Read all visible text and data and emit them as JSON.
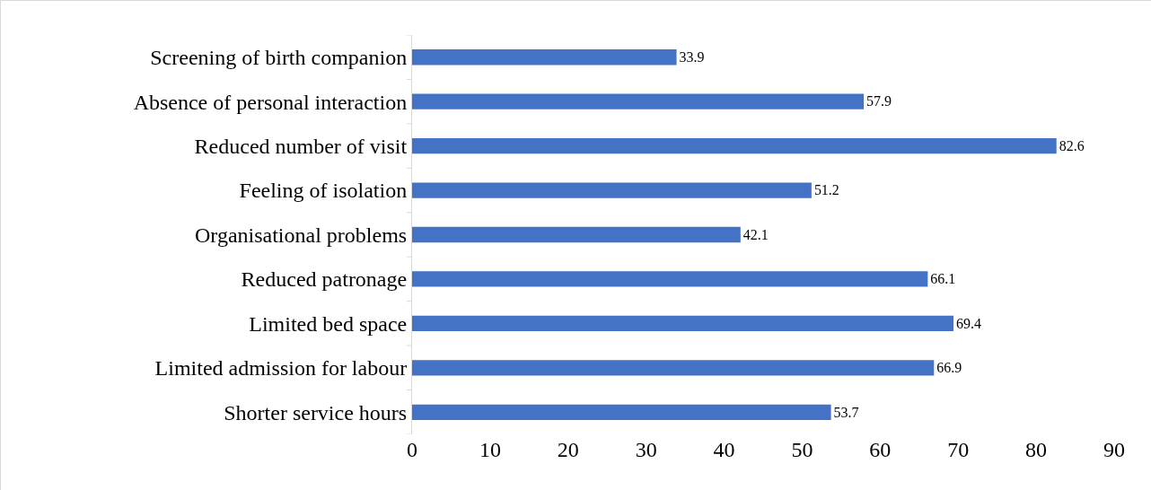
{
  "chart_data": {
    "type": "bar",
    "orientation": "horizontal",
    "categories": [
      "Screening of birth companion",
      "Absence of personal interaction",
      "Reduced number of visit",
      "Feeling of isolation",
      "Organisational problems",
      "Reduced patronage",
      "Limited bed space",
      "Limited admission for labour",
      "Shorter service hours"
    ],
    "values": [
      33.9,
      57.9,
      82.6,
      51.2,
      42.1,
      66.1,
      69.4,
      66.9,
      53.7
    ],
    "color": "#4472c4",
    "xlim": [
      0,
      90
    ],
    "xticks": [
      0,
      10,
      20,
      30,
      40,
      50,
      60,
      70,
      80,
      90
    ],
    "grid": false,
    "legend": false,
    "data_labels": true
  }
}
